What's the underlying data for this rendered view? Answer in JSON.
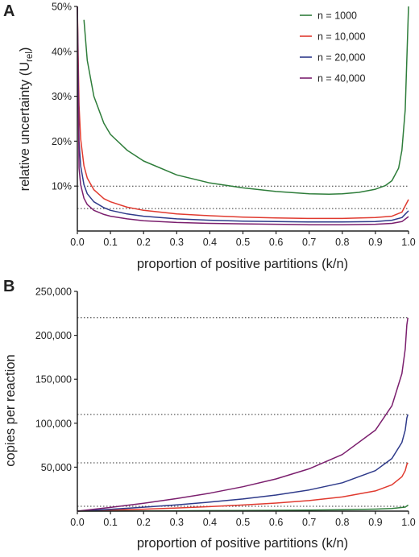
{
  "panels": [
    {
      "letter": "A",
      "chart_data": {
        "type": "line",
        "title": "",
        "xlabel": "proportion of positive partitions (k/n)",
        "ylabel": "relative uncertainty (U",
        "ylabel_sub": "rel",
        "ylabel_close": ")",
        "xlim": [
          0,
          1
        ],
        "ylim": [
          0,
          0.5
        ],
        "x_ticks": [
          "0.0",
          "0.1",
          "0.2",
          "0.3",
          "0.4",
          "0.5",
          "0.6",
          "0.7",
          "0.8",
          "0.9",
          "1.0"
        ],
        "y_ticks": [
          "10%",
          "20%",
          "30%",
          "40%",
          "50%"
        ],
        "reference_lines": [
          0.1,
          0.05
        ],
        "legend_position": "top-right",
        "grid": false,
        "series": [
          {
            "name": "n = 1000",
            "color": "#2e7d3a",
            "x": [
              0.02,
              0.03,
              0.05,
              0.08,
              0.1,
              0.15,
              0.2,
              0.3,
              0.4,
              0.5,
              0.6,
              0.7,
              0.76,
              0.8,
              0.85,
              0.9,
              0.93,
              0.95,
              0.97,
              0.98,
              0.99,
              1.0
            ],
            "y": [
              0.47,
              0.38,
              0.3,
              0.24,
              0.215,
              0.18,
              0.156,
              0.125,
              0.107,
              0.096,
              0.088,
              0.083,
              0.082,
              0.083,
              0.086,
              0.093,
              0.101,
              0.112,
              0.14,
              0.18,
              0.27,
              0.5
            ]
          },
          {
            "name": "n = 10,000",
            "color": "#e03a2f",
            "x": [
              0.0,
              0.005,
              0.01,
              0.02,
              0.03,
              0.05,
              0.08,
              0.1,
              0.15,
              0.2,
              0.3,
              0.4,
              0.5,
              0.6,
              0.7,
              0.8,
              0.9,
              0.95,
              0.98,
              1.0
            ],
            "y": [
              0.5,
              0.28,
              0.205,
              0.145,
              0.118,
              0.092,
              0.072,
              0.065,
              0.053,
              0.046,
              0.038,
              0.034,
              0.031,
              0.029,
              0.028,
              0.028,
              0.03,
              0.033,
              0.042,
              0.07
            ]
          },
          {
            "name": "n = 20,000",
            "color": "#2e3a8a",
            "x": [
              0.0,
              0.005,
              0.01,
              0.02,
              0.03,
              0.05,
              0.08,
              0.1,
              0.15,
              0.2,
              0.3,
              0.4,
              0.5,
              0.6,
              0.7,
              0.8,
              0.9,
              0.95,
              0.98,
              1.0
            ],
            "y": [
              0.5,
              0.2,
              0.145,
              0.103,
              0.083,
              0.065,
              0.052,
              0.046,
              0.038,
              0.033,
              0.027,
              0.024,
              0.022,
              0.021,
              0.02,
              0.02,
              0.021,
              0.024,
              0.03,
              0.045
            ]
          },
          {
            "name": "n = 40,000",
            "color": "#7b1f6e",
            "x": [
              0.0,
              0.005,
              0.01,
              0.02,
              0.03,
              0.05,
              0.08,
              0.1,
              0.15,
              0.2,
              0.3,
              0.4,
              0.5,
              0.6,
              0.7,
              0.8,
              0.9,
              0.95,
              0.98,
              1.0
            ],
            "y": [
              0.5,
              0.14,
              0.103,
              0.073,
              0.059,
              0.046,
              0.037,
              0.033,
              0.027,
              0.023,
              0.019,
              0.017,
              0.016,
              0.015,
              0.014,
              0.014,
              0.015,
              0.017,
              0.021,
              0.032
            ]
          }
        ]
      }
    },
    {
      "letter": "B",
      "chart_data": {
        "type": "line",
        "title": "",
        "xlabel": "proportion of positive partitions (k/n)",
        "ylabel": "copies per reaction",
        "xlim": [
          0,
          1
        ],
        "ylim": [
          0,
          250000
        ],
        "x_ticks": [
          "0.0",
          "0.1",
          "0.2",
          "0.3",
          "0.4",
          "0.5",
          "0.6",
          "0.7",
          "0.8",
          "0.9",
          "1.0"
        ],
        "y_ticks": [
          "50,000",
          "100,000",
          "150,000",
          "200,000",
          "250,000"
        ],
        "reference_lines": [
          220000,
          110000,
          55000,
          5500
        ],
        "grid": false,
        "series": [
          {
            "name": "n = 1000",
            "color": "#2e7d3a",
            "x": [
              0.0,
              0.1,
              0.2,
              0.3,
              0.4,
              0.5,
              0.6,
              0.7,
              0.8,
              0.9,
              0.95,
              0.99,
              0.999
            ],
            "y": [
              0,
              105,
              223,
              357,
              511,
              693,
              916,
              1204,
              1609,
              2303,
              2996,
              4605,
              6908
            ]
          },
          {
            "name": "n = 10,000",
            "color": "#e03a2f",
            "x": [
              0.0,
              0.1,
              0.2,
              0.3,
              0.4,
              0.5,
              0.6,
              0.7,
              0.8,
              0.9,
              0.95,
              0.98,
              0.99,
              0.995,
              0.998
            ],
            "y": [
              0,
              1054,
              2231,
              3567,
              5108,
              6931,
              9163,
              12040,
              16094,
              23026,
              29957,
              39120,
              46052,
              52983,
              55000
            ]
          },
          {
            "name": "n = 20,000",
            "color": "#2e3a8a",
            "x": [
              0.0,
              0.1,
              0.2,
              0.3,
              0.4,
              0.5,
              0.6,
              0.7,
              0.8,
              0.9,
              0.95,
              0.98,
              0.99,
              0.995,
              0.998
            ],
            "y": [
              0,
              2107,
              4463,
              7133,
              10217,
              13863,
              18326,
              24079,
              32189,
              46052,
              59915,
              78240,
              92103,
              105966,
              110000
            ]
          },
          {
            "name": "n = 40,000",
            "color": "#7b1f6e",
            "x": [
              0.0,
              0.1,
              0.2,
              0.3,
              0.4,
              0.5,
              0.6,
              0.7,
              0.8,
              0.9,
              0.95,
              0.98,
              0.99,
              0.995,
              0.998
            ],
            "y": [
              0,
              4214,
              8926,
              14267,
              20433,
              27726,
              36652,
              48159,
              64378,
              92103,
              119829,
              156481,
              184207,
              211932,
              220000
            ]
          }
        ]
      }
    }
  ]
}
